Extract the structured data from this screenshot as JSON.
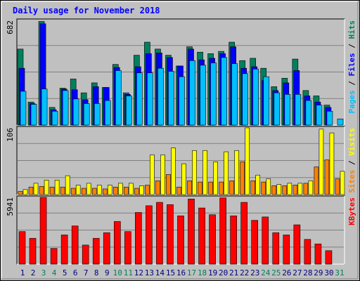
{
  "chart_data": {
    "type": "bar",
    "title": "Daily usage for November 2018",
    "colors": {
      "hits": "#00805c",
      "files": "#0000ff",
      "pages": "#00c0ff",
      "visits": "#ffff00",
      "sites": "#ff8000",
      "kbytes": "#ff0000",
      "weekend_label": "#00805c",
      "weekday_label": "#000080",
      "title": "#0000ff",
      "background": "#c0c0c0"
    },
    "categories": [
      "1",
      "2",
      "3",
      "4",
      "5",
      "6",
      "7",
      "8",
      "9",
      "10",
      "11",
      "12",
      "13",
      "14",
      "15",
      "16",
      "17",
      "18",
      "19",
      "20",
      "21",
      "22",
      "23",
      "24",
      "25",
      "26",
      "27",
      "28",
      "29",
      "30",
      "31"
    ],
    "weekend_days": [
      "3",
      "4",
      "10",
      "11",
      "17",
      "18",
      "24",
      "25",
      "31"
    ],
    "panels": [
      {
        "id": "top",
        "ymax_label": "682",
        "ymax": 682,
        "axis_label_parts": [
          {
            "text": "Pages",
            "series": "pages"
          },
          {
            "text": " / ",
            "series": "sep"
          },
          {
            "text": "Files",
            "series": "files"
          },
          {
            "text": " / ",
            "series": "sep"
          },
          {
            "text": "Hits",
            "series": "hits"
          }
        ],
        "series": [
          {
            "name": "Hits",
            "key": "hits",
            "values": [
              495,
              150,
              675,
              115,
              240,
              300,
              210,
              275,
              245,
              395,
              210,
              455,
              540,
              495,
              455,
              385,
              510,
              475,
              465,
              480,
              540,
              420,
              435,
              370,
              250,
              305,
              430,
              225,
              190,
              130,
              0
            ]
          },
          {
            "name": "Files",
            "key": "files",
            "values": [
              370,
              140,
              660,
              100,
              235,
              230,
              165,
              250,
              245,
              375,
              200,
              380,
              465,
              470,
              440,
              385,
              495,
              425,
              435,
              465,
              510,
              370,
              380,
              290,
              225,
              275,
              355,
              190,
              150,
              115,
              0
            ]
          },
          {
            "name": "Pages",
            "key": "pages",
            "values": [
              220,
              135,
              235,
              90,
              225,
              170,
              140,
              140,
              160,
              355,
              190,
              340,
              340,
              370,
              350,
              315,
              420,
              390,
              405,
              440,
              400,
              335,
              365,
              315,
              210,
              200,
              200,
              160,
              130,
              90,
              40
            ]
          }
        ]
      },
      {
        "id": "middle",
        "ymax_label": "106",
        "ymax": 106,
        "axis_label_parts": [
          {
            "text": "Sites",
            "series": "sites"
          },
          {
            "text": " / ",
            "series": "sep"
          },
          {
            "text": "Visits",
            "series": "visits"
          }
        ],
        "series": [
          {
            "name": "Visits",
            "key": "visits",
            "values": [
              8,
              18,
              23,
              23,
              30,
              15,
              18,
              15,
              15,
              18,
              18,
              14,
              63,
              63,
              74,
              49,
              70,
              70,
              52,
              68,
              70,
              106,
              31,
              25,
              16,
              18,
              18,
              22,
              104,
              98,
              37
            ]
          },
          {
            "name": "Sites",
            "key": "sites",
            "values": [
              5,
              12,
              13,
              12,
              12,
              10,
              10,
              10,
              9,
              12,
              12,
              10,
              15,
              22,
              32,
              12,
              22,
              20,
              20,
              20,
              22,
              52,
              22,
              20,
              14,
              14,
              15,
              18,
              44,
              55,
              25
            ]
          }
        ]
      },
      {
        "id": "bottom",
        "ymax_label": "5941",
        "ymax": 5941,
        "axis_label_parts": [
          {
            "text": "KBytes",
            "series": "kbytes"
          }
        ],
        "series": [
          {
            "name": "KBytes",
            "key": "kbytes",
            "values": [
              2900,
              2300,
              5941,
              1400,
              2600,
              3400,
              1700,
              2300,
              2800,
              3800,
              2900,
              4600,
              5200,
              5500,
              5300,
              4300,
              5800,
              5000,
              4400,
              5900,
              4300,
              5500,
              3900,
              4200,
              2800,
              2600,
              3500,
              2200,
              1800,
              1200,
              0
            ]
          }
        ]
      }
    ]
  }
}
